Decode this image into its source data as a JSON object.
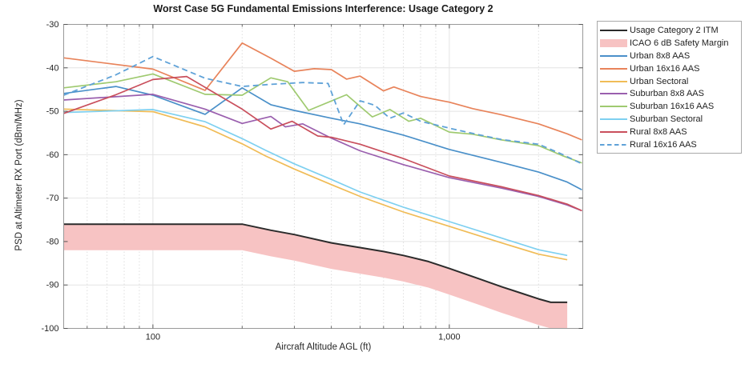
{
  "figure": {
    "kind": "MATLAB-style line plot",
    "background": "#ffffff",
    "axes_box_color": "#999999",
    "grid_color": "#e4e4e4",
    "minor_grid_color": "#dedede",
    "text_color": "#262626",
    "legend_border_color": "#a9a9a9",
    "legend_position": "outside-top-right"
  },
  "chart_data": {
    "type": "line",
    "title": "Worst Case 5G Fundamental Emissions Interference: Usage Category 2",
    "xlabel": "Aircraft Altitude AGL (ft)",
    "ylabel": "PSD at Altimeter RX Port (dBm/MHz)",
    "xscale": "log",
    "xlim": [
      50,
      2820
    ],
    "ylim": [
      -100,
      -30
    ],
    "grid": true,
    "x_major_ticks": [
      100,
      1000
    ],
    "x_major_tick_labels": [
      "100",
      "1,000"
    ],
    "x_minor_ticks": [
      60,
      70,
      80,
      90,
      200,
      300,
      400,
      500,
      600,
      700,
      800,
      900,
      2000
    ],
    "y_ticks": [
      -30,
      -40,
      -50,
      -60,
      -70,
      -80,
      -90,
      -100
    ],
    "y_tick_labels": [
      "-30",
      "-40",
      "-50",
      "-60",
      "-70",
      "-80",
      "-90",
      "-100"
    ],
    "series": [
      {
        "name": "Usage Category 2 ITM",
        "type": "line",
        "style": "solid",
        "color": "#2b2b2b",
        "width": 2,
        "x": [
          50,
          200,
          250,
          300,
          400,
          500,
          600,
          700,
          850,
          1000,
          1250,
          1500,
          1750,
          2000,
          2200,
          2500
        ],
        "y": [
          -76,
          -76,
          -77.4,
          -78.4,
          -80.3,
          -81.4,
          -82.3,
          -83.2,
          -84.6,
          -86.2,
          -88.5,
          -90.4,
          -91.9,
          -93.2,
          -94,
          -94
        ]
      },
      {
        "name": "ICAO 6 dB Safety Margin",
        "type": "band",
        "color": "#f7c3c3",
        "offset_db": -6,
        "x": [
          50,
          200,
          250,
          300,
          400,
          500,
          600,
          700,
          850,
          1000,
          1250,
          1500,
          1750,
          2000,
          2200,
          2500
        ],
        "upper": [
          -76,
          -76,
          -77.4,
          -78.4,
          -80.3,
          -81.4,
          -82.3,
          -83.2,
          -84.6,
          -86.2,
          -88.5,
          -90.4,
          -91.9,
          -93.2,
          -94,
          -94
        ],
        "lower": [
          -82,
          -82,
          -83.4,
          -84.4,
          -86.3,
          -87.4,
          -88.3,
          -89.2,
          -90.6,
          -92.2,
          -94.5,
          -96.4,
          -97.9,
          -99.2,
          -100,
          -100
        ]
      },
      {
        "name": "Urban 8x8 AAS",
        "type": "line",
        "style": "solid",
        "color": "#4a90c9",
        "width": 1.7,
        "x": [
          50,
          75,
          100,
          150,
          200,
          250,
          300,
          400,
          500,
          700,
          1000,
          1500,
          2000,
          2500,
          2800
        ],
        "y": [
          -45.9,
          -44.3,
          -46.3,
          -50.7,
          -44.6,
          -48.5,
          -49.8,
          -51.6,
          -52.9,
          -55.5,
          -58.8,
          -61.8,
          -64.0,
          -66.3,
          -68.1
        ]
      },
      {
        "name": "Urban 16x16 AAS",
        "type": "line",
        "style": "solid",
        "color": "#e8835a",
        "width": 1.7,
        "x": [
          50,
          100,
          150,
          200,
          250,
          300,
          350,
          400,
          450,
          500,
          600,
          650,
          800,
          900,
          1000,
          1200,
          1500,
          2000,
          2500,
          2800
        ],
        "y": [
          -37.7,
          -40.3,
          -45.2,
          -34.3,
          -37.8,
          -40.8,
          -40.2,
          -40.4,
          -42.6,
          -41.9,
          -45.3,
          -44.4,
          -46.6,
          -47.3,
          -47.9,
          -49.4,
          -50.8,
          -52.9,
          -55.2,
          -56.6
        ]
      },
      {
        "name": "Urban Sectoral",
        "type": "line",
        "style": "solid",
        "color": "#f0bc57",
        "width": 1.7,
        "x": [
          50,
          100,
          150,
          200,
          240,
          300,
          400,
          500,
          700,
          1000,
          1500,
          2000,
          2500
        ],
        "y": [
          -49.5,
          -50.1,
          -53.6,
          -57.5,
          -60.3,
          -63.3,
          -66.9,
          -69.6,
          -73.2,
          -76.5,
          -80.3,
          -82.9,
          -84.2
        ]
      },
      {
        "name": "Suburban 8x8 AAS",
        "type": "line",
        "style": "solid",
        "color": "#9a5fae",
        "width": 1.7,
        "x": [
          50,
          100,
          150,
          200,
          250,
          280,
          320,
          400,
          500,
          700,
          1000,
          1500,
          2000,
          2500,
          2800
        ],
        "y": [
          -47.4,
          -46.1,
          -49.5,
          -52.8,
          -51.2,
          -53.6,
          -52.9,
          -56.2,
          -59.1,
          -62.3,
          -65.3,
          -67.7,
          -69.6,
          -71.6,
          -72.9
        ]
      },
      {
        "name": "Suburban 16x16 AAS",
        "type": "line",
        "style": "solid",
        "color": "#9fca70",
        "width": 1.7,
        "x": [
          50,
          75,
          100,
          150,
          200,
          250,
          285,
          335,
          450,
          550,
          630,
          730,
          800,
          1000,
          1200,
          1500,
          2000,
          2400,
          2800
        ],
        "y": [
          -44.6,
          -43.2,
          -41.4,
          -46.1,
          -46.3,
          -42.3,
          -43.2,
          -49.8,
          -46.2,
          -51.3,
          -49.6,
          -52.3,
          -51.6,
          -54.8,
          -55.3,
          -56.6,
          -57.9,
          -60.2,
          -61.9
        ]
      },
      {
        "name": "Suburban Sectoral",
        "type": "line",
        "style": "solid",
        "color": "#7ed0f0",
        "width": 1.7,
        "x": [
          50,
          100,
          150,
          200,
          240,
          300,
          400,
          500,
          700,
          1000,
          1500,
          2000,
          2500
        ],
        "y": [
          -50.3,
          -49.6,
          -52.4,
          -56.3,
          -59.0,
          -62.1,
          -65.7,
          -68.6,
          -72.1,
          -75.4,
          -79.2,
          -81.9,
          -83.2
        ]
      },
      {
        "name": "Rural 8x8 AAS",
        "type": "line",
        "style": "solid",
        "color": "#c94f5c",
        "width": 1.7,
        "x": [
          50,
          75,
          100,
          130,
          200,
          250,
          295,
          360,
          400,
          500,
          700,
          1000,
          1500,
          2000,
          2500,
          2800
        ],
        "y": [
          -50.5,
          -46.2,
          -42.7,
          -42.0,
          -49.5,
          -54.1,
          -52.3,
          -55.7,
          -56.0,
          -57.6,
          -60.9,
          -64.9,
          -67.4,
          -69.4,
          -71.4,
          -72.9
        ]
      },
      {
        "name": "Rural 16x16 AAS",
        "type": "line",
        "style": "dashed",
        "color": "#5fa2d8",
        "width": 1.8,
        "x": [
          50,
          75,
          100,
          150,
          200,
          250,
          320,
          390,
          440,
          500,
          560,
          630,
          700,
          800,
          1000,
          1200,
          1500,
          2000,
          2400,
          2800
        ],
        "y": [
          -46.3,
          -41.6,
          -37.4,
          -42.4,
          -44.3,
          -43.8,
          -43.4,
          -43.6,
          -53.1,
          -47.6,
          -48.6,
          -51.6,
          -50.4,
          -52.3,
          -53.9,
          -55.1,
          -56.5,
          -57.6,
          -59.9,
          -62.1
        ]
      }
    ]
  }
}
